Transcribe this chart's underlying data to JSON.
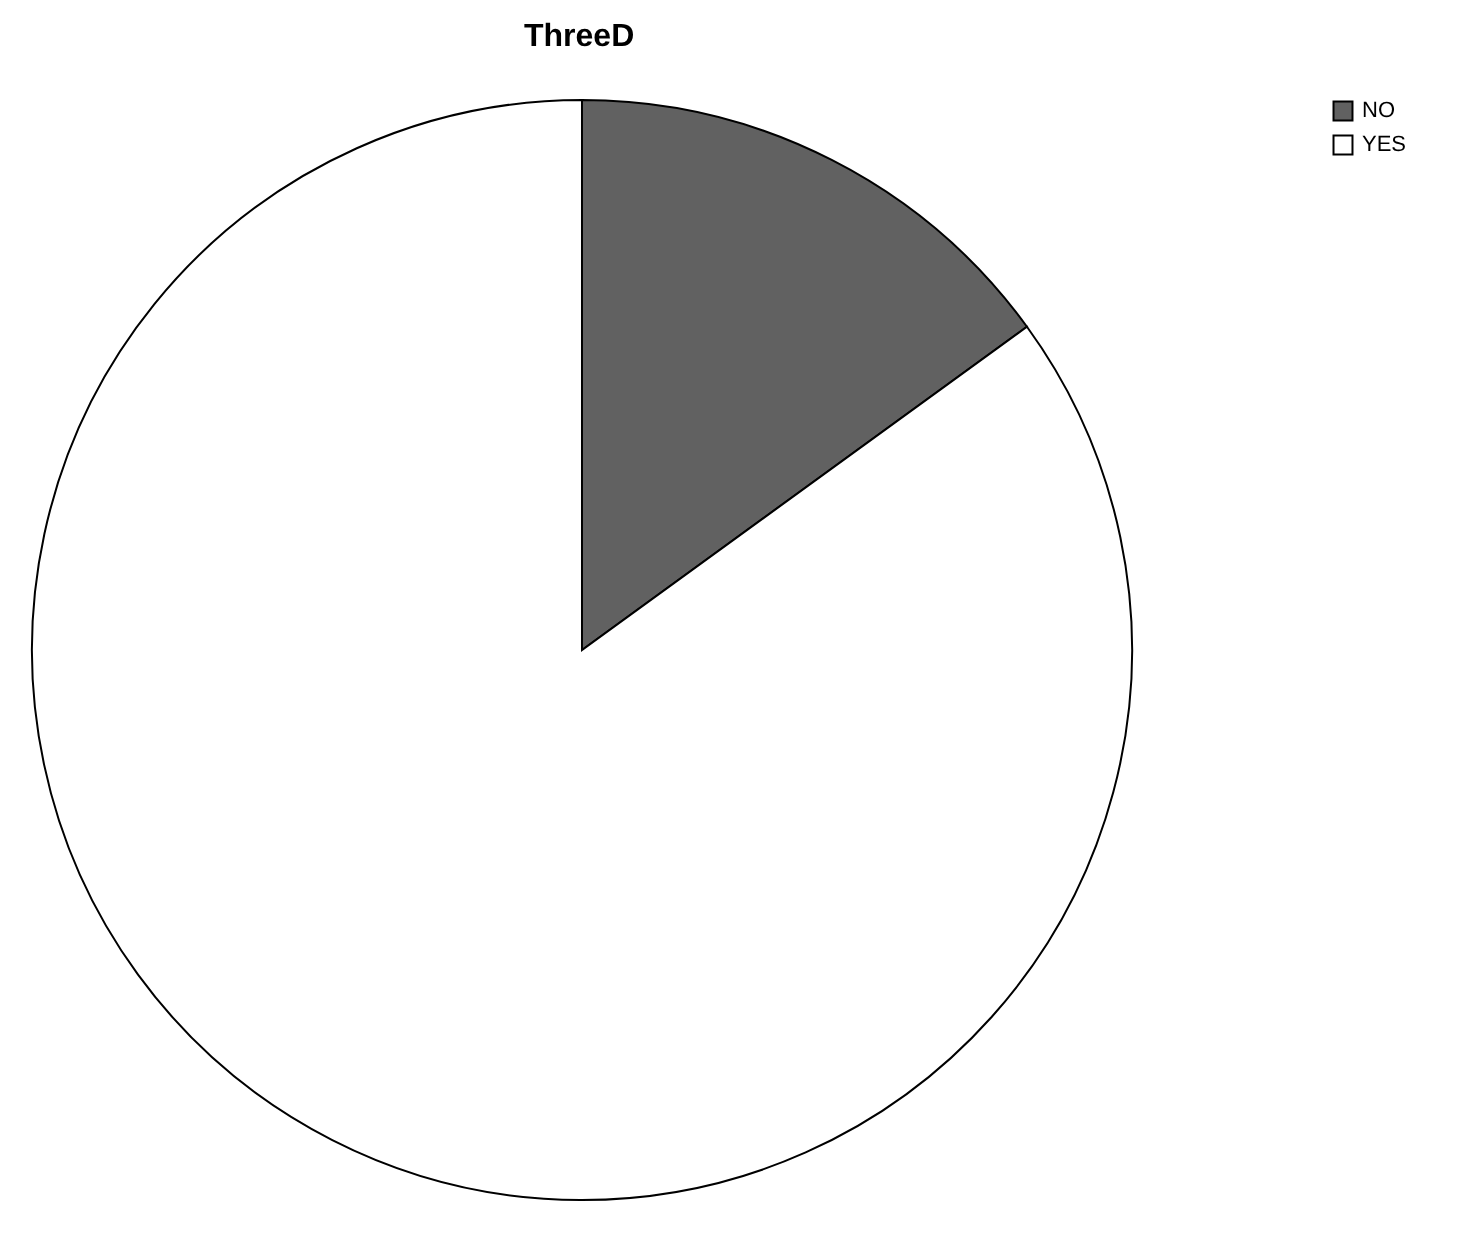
{
  "chart_data": {
    "type": "pie",
    "title": "ThreeD",
    "categories": [
      "NO",
      "YES"
    ],
    "values": [
      15,
      85
    ],
    "colors": [
      "#616161",
      "#ffffff"
    ],
    "legend": "top right"
  }
}
